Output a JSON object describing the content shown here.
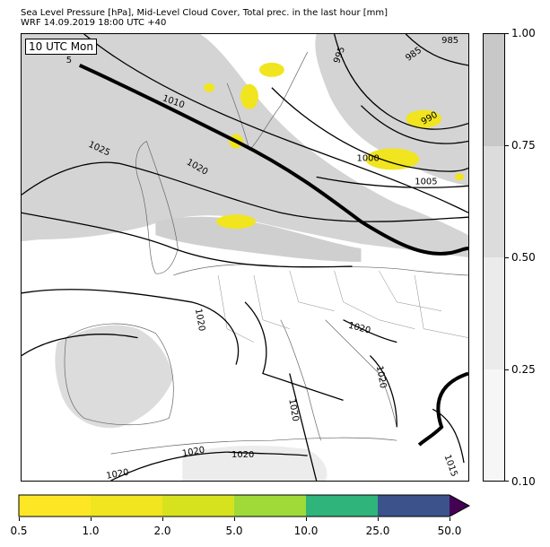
{
  "header": {
    "title_line1": "Sea Level Pressure [hPa], Mid-Level Cloud Cover, Total prec. in the last hour [mm]",
    "title_line2": "WRF 14.09.2019 18:00 UTC +40"
  },
  "map": {
    "time_label": "10 UTC Mon",
    "isobar_labels": [
      "985",
      "995",
      "985",
      "990",
      "1000",
      "1005",
      "1010",
      "1025",
      "1020",
      "1020",
      "1020",
      "1020",
      "1020",
      "1020",
      "1020",
      "1020",
      "1015",
      "5"
    ]
  },
  "cloud_colorbar": {
    "ticks": [
      "1.00",
      "0.75",
      "0.50",
      "0.25",
      "0.10"
    ],
    "colors": [
      "#c8c8c8",
      "#dcdcdc",
      "#ebebeb",
      "#f6f6f6"
    ]
  },
  "precip_colorbar": {
    "ticks": [
      "0.5",
      "1.0",
      "2.0",
      "5.0",
      "10.0",
      "25.0",
      "50.0"
    ],
    "colors": [
      "#fde725",
      "#f0e51f",
      "#d7e21f",
      "#a0da39",
      "#2fb47c",
      "#3b528b",
      "#440154"
    ]
  }
}
